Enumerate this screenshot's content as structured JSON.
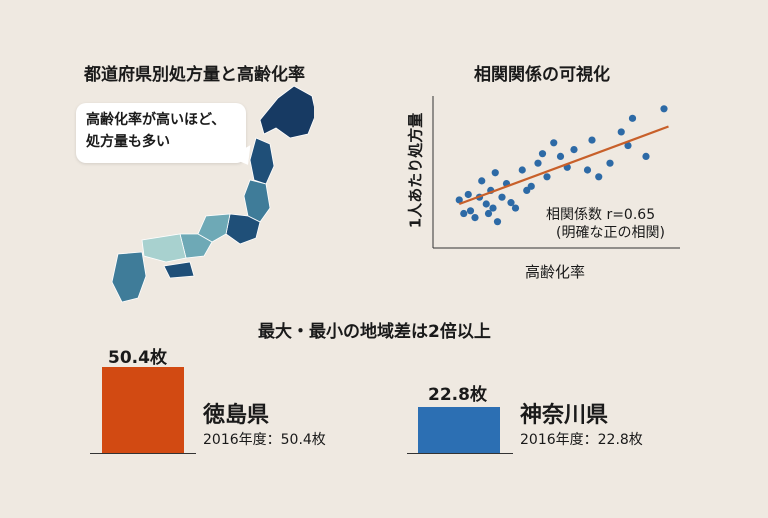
{
  "map_panel": {
    "title": "都道府県別処方量と高齢化率",
    "bubble_line1": "高齢化率が高いほど、",
    "bubble_line2": "処方量も多い",
    "map_colors": [
      "#d9ece8",
      "#a8d1cf",
      "#6ea9b6",
      "#3f7c99",
      "#1f4f78",
      "#173a63"
    ]
  },
  "scatter_panel": {
    "title": "相関関係の可視化",
    "correlation_line1": "相関係数 r=0.65",
    "correlation_line2": "(明確な正の相関)"
  },
  "difference_panel": {
    "title": "最大・最小の地域差は2倍以上"
  },
  "chart_data": [
    {
      "type": "scatter",
      "xlabel": "高齢化率",
      "ylabel": "1人あたり処方量",
      "x": [
        0.05,
        0.07,
        0.09,
        0.1,
        0.12,
        0.14,
        0.15,
        0.17,
        0.18,
        0.19,
        0.2,
        0.21,
        0.22,
        0.24,
        0.26,
        0.28,
        0.3,
        0.33,
        0.35,
        0.37,
        0.4,
        0.42,
        0.44,
        0.47,
        0.5,
        0.53,
        0.56,
        0.62,
        0.64,
        0.67,
        0.72,
        0.77,
        0.8,
        0.82,
        0.88,
        0.96
      ],
      "y": [
        0.28,
        0.18,
        0.32,
        0.2,
        0.15,
        0.3,
        0.42,
        0.25,
        0.18,
        0.35,
        0.22,
        0.48,
        0.12,
        0.3,
        0.4,
        0.26,
        0.22,
        0.5,
        0.35,
        0.38,
        0.55,
        0.62,
        0.45,
        0.7,
        0.6,
        0.52,
        0.65,
        0.5,
        0.72,
        0.45,
        0.55,
        0.78,
        0.68,
        0.88,
        0.6,
        0.95
      ],
      "trendline": {
        "x": [
          0.05,
          0.98
        ],
        "y": [
          0.25,
          0.82
        ]
      },
      "color": "#2d6aa6",
      "trend_color": "#c8602a",
      "grid": false,
      "ticks": false
    },
    {
      "type": "bar",
      "categories": [
        "徳島県",
        "神奈川県"
      ],
      "values": [
        50.4,
        22.8
      ],
      "value_labels": [
        "50.4枚",
        "22.8枚"
      ],
      "sublabels": [
        "2016年度：50.4枚",
        "2016年度：22.8枚"
      ],
      "colors": [
        "#d24a12",
        "#2c6fb3"
      ]
    }
  ]
}
